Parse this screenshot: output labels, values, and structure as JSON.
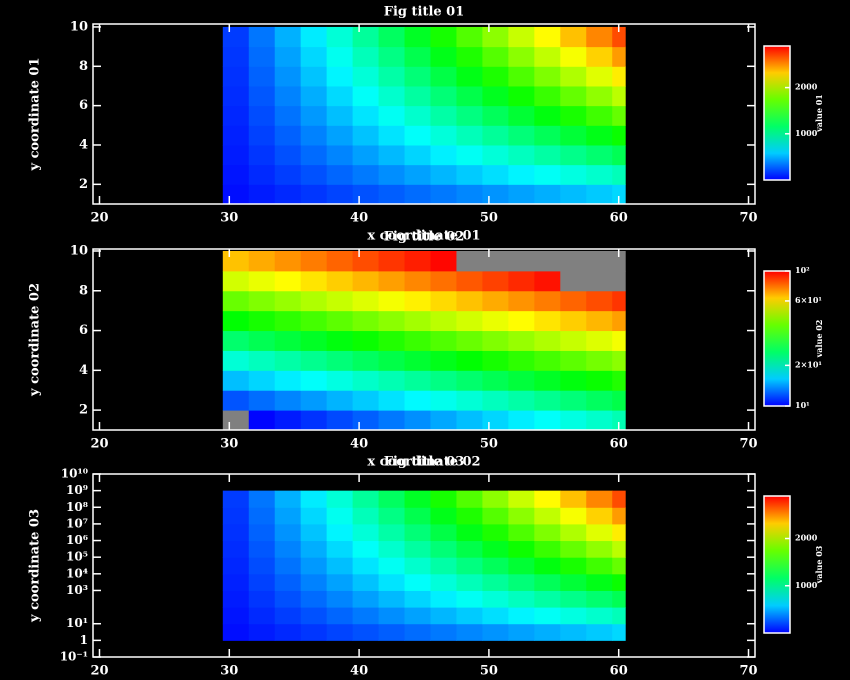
{
  "chart_data": [
    {
      "type": "heatmap",
      "title": "Fig title 01",
      "xlabel": "x coordinate 01",
      "ylabel": "y coordinate 01",
      "colorbar_label": "value 01",
      "xlim": [
        19.5,
        70.5
      ],
      "xticks": [
        20,
        30,
        40,
        50,
        60,
        70
      ],
      "ylim": [
        1,
        10.15
      ],
      "yticks": [
        2,
        4,
        6,
        8,
        10
      ],
      "x_edges": [
        29.5,
        31.5,
        33.5,
        35.5,
        37.5,
        39.5,
        41.5,
        43.5,
        45.5,
        47.5,
        49.5,
        51.5,
        53.5,
        55.5,
        57.5,
        59.5,
        60.5
      ],
      "y_edges": [
        1,
        2,
        3,
        4,
        5,
        6,
        7,
        8,
        9,
        10
      ],
      "zlim": [
        0,
        2900
      ],
      "cticks": [
        1000,
        2000
      ],
      "color_log": false,
      "y_log": false,
      "values": [
        [
          38,
          77,
          115,
          153,
          192,
          230,
          268,
          307,
          345,
          383,
          421,
          460,
          498,
          536,
          575,
          613
        ],
        [
          58,
          116,
          173,
          231,
          289,
          347,
          404,
          462,
          520,
          578,
          635,
          693,
          751,
          809,
          866,
          924
        ],
        [
          76,
          151,
          227,
          303,
          378,
          454,
          529,
          605,
          681,
          756,
          832,
          908,
          983,
          1059,
          1134,
          1210
        ],
        [
          92,
          185,
          277,
          370,
          462,
          554,
          647,
          739,
          831,
          924,
          1016,
          1109,
          1201,
          1293,
          1386,
          1478
        ],
        [
          109,
          217,
          326,
          434,
          543,
          651,
          760,
          868,
          977,
          1085,
          1194,
          1302,
          1411,
          1519,
          1628,
          1736
        ],
        [
          124,
          248,
          372,
          496,
          619,
          743,
          867,
          991,
          1115,
          1239,
          1363,
          1487,
          1610,
          1734,
          1858,
          1982
        ],
        [
          139,
          278,
          417,
          557,
          696,
          835,
          974,
          1113,
          1252,
          1391,
          1530,
          1670,
          1809,
          1948,
          2087,
          2226
        ],
        [
          154,
          307,
          461,
          615,
          768,
          922,
          1075,
          1229,
          1383,
          1536,
          1690,
          1844,
          1997,
          2151,
          2304,
          2458
        ],
        [
          168,
          336,
          504,
          672,
          840,
          1008,
          1176,
          1344,
          1512,
          1680,
          1848,
          2016,
          2184,
          2352,
          2520,
          2688
        ]
      ]
    },
    {
      "type": "heatmap",
      "title": "Fig title 02",
      "xlabel": "x coordinate 02",
      "ylabel": "y coordinate 02",
      "colorbar_label": "value 02",
      "xlim": [
        19.5,
        70.5
      ],
      "xticks": [
        20,
        30,
        40,
        50,
        60,
        70
      ],
      "ylim": [
        1,
        10.1
      ],
      "yticks": [
        2,
        4,
        6,
        8,
        10
      ],
      "x_edges": [
        29.5,
        31.5,
        33.5,
        35.5,
        37.5,
        39.5,
        41.5,
        43.5,
        45.5,
        47.5,
        49.5,
        51.5,
        53.5,
        55.5,
        57.5,
        59.5,
        60.5
      ],
      "y_edges": [
        1,
        2,
        3,
        4,
        5,
        6,
        7,
        8,
        9,
        10
      ],
      "zlim": [
        10,
        100
      ],
      "cticks": [
        {
          "value": 10,
          "label": "10¹"
        },
        {
          "value": 20,
          "label": "2×10¹"
        },
        {
          "value": 60,
          "label": "6×10¹"
        },
        {
          "value": 100,
          "label": "10²"
        }
      ],
      "color_log": true,
      "y_log": false,
      "out_of_range_color": "#808080",
      "values": [
        [
          9.5,
          10.1,
          10.6,
          11.2,
          11.8,
          12.4,
          13.1,
          13.8,
          14.6,
          15.4,
          16.2,
          17.1,
          18.0,
          19.0,
          20.0,
          21.1
        ],
        [
          12.1,
          12.8,
          13.5,
          14.2,
          15.0,
          15.8,
          16.7,
          17.6,
          18.5,
          19.5,
          20.6,
          21.7,
          22.9,
          24.1,
          25.5,
          26.8
        ],
        [
          15.4,
          16.2,
          17.1,
          18.0,
          19.0,
          20.1,
          21.1,
          22.3,
          23.5,
          24.8,
          26.2,
          27.6,
          29.1,
          30.7,
          32.3,
          34.1
        ],
        [
          19.5,
          20.6,
          21.7,
          22.9,
          24.1,
          25.5,
          26.9,
          28.3,
          29.9,
          31.5,
          33.2,
          35.0,
          36.9,
          38.9,
          41.1,
          43.3
        ],
        [
          24.8,
          26.2,
          27.6,
          29.1,
          30.7,
          32.3,
          34.1,
          36.0,
          37.9,
          40.0,
          42.2,
          44.5,
          46.9,
          49.5,
          52.1,
          55.0
        ],
        [
          31.5,
          33.2,
          35.0,
          36.9,
          38.9,
          41.1,
          43.3,
          45.7,
          48.2,
          50.8,
          53.6,
          56.5,
          59.6,
          62.8,
          66.2,
          69.8
        ],
        [
          40.0,
          42.2,
          44.5,
          46.9,
          49.5,
          52.2,
          55.0,
          58.0,
          61.2,
          64.5,
          68.0,
          71.7,
          75.6,
          79.8,
          84.1,
          88.7
        ],
        [
          50.8,
          53.6,
          56.5,
          59.6,
          62.8,
          66.2,
          69.9,
          73.7,
          77.7,
          81.9,
          86.4,
          91.1,
          96.1,
          101.3,
          106.8,
          112.6
        ],
        [
          64.5,
          68.0,
          71.7,
          75.6,
          79.8,
          84.1,
          88.7,
          93.5,
          98.6,
          104.0,
          109.7,
          115.6,
          122.0,
          128.7,
          135.6,
          143.0
        ]
      ]
    },
    {
      "type": "heatmap",
      "title": "Fig title 03",
      "ylabel": "y coordinate 03",
      "colorbar_label": "value 03",
      "xlim": [
        19.5,
        70.5
      ],
      "xticks": [
        20,
        30,
        40,
        50,
        60,
        70
      ],
      "ylim": [
        0.1,
        10000000000
      ],
      "y_log": true,
      "yticks": [
        {
          "value": 0.1,
          "label": "10⁻¹"
        },
        1,
        {
          "value": 10,
          "label": "10¹"
        },
        {
          "value": 1000,
          "label": "10³"
        },
        {
          "value": 10000,
          "label": "10⁴"
        },
        {
          "value": 100000,
          "label": "10⁵"
        },
        {
          "value": 1000000,
          "label": "10⁶"
        },
        {
          "value": 10000000,
          "label": "10⁷"
        },
        {
          "value": 100000000,
          "label": "10⁸"
        },
        {
          "value": 1000000000,
          "label": "10⁹"
        },
        {
          "value": 10000000000,
          "label": "10¹⁰"
        }
      ],
      "x_edges": [
        29.5,
        31.5,
        33.5,
        35.5,
        37.5,
        39.5,
        41.5,
        43.5,
        45.5,
        47.5,
        49.5,
        51.5,
        53.5,
        55.5,
        57.5,
        59.5,
        60.5
      ],
      "y_edges": [
        1,
        10,
        100,
        1000,
        10000,
        100000,
        1000000,
        10000000,
        100000000,
        1000000000
      ],
      "zlim": [
        0,
        2900
      ],
      "cticks": [
        1000,
        2000
      ],
      "color_log": false,
      "values": [
        [
          38,
          77,
          115,
          153,
          192,
          230,
          268,
          307,
          345,
          383,
          421,
          460,
          498,
          536,
          575,
          613
        ],
        [
          58,
          116,
          173,
          231,
          289,
          347,
          404,
          462,
          520,
          578,
          635,
          693,
          751,
          809,
          866,
          924
        ],
        [
          76,
          151,
          227,
          303,
          378,
          454,
          529,
          605,
          681,
          756,
          832,
          908,
          983,
          1059,
          1134,
          1210
        ],
        [
          92,
          185,
          277,
          370,
          462,
          554,
          647,
          739,
          831,
          924,
          1016,
          1109,
          1201,
          1293,
          1386,
          1478
        ],
        [
          109,
          217,
          326,
          434,
          543,
          651,
          760,
          868,
          977,
          1085,
          1194,
          1302,
          1411,
          1519,
          1628,
          1736
        ],
        [
          124,
          248,
          372,
          496,
          619,
          743,
          867,
          991,
          1115,
          1239,
          1363,
          1487,
          1610,
          1734,
          1858,
          1982
        ],
        [
          139,
          278,
          417,
          557,
          696,
          835,
          974,
          1113,
          1252,
          1391,
          1530,
          1670,
          1809,
          1948,
          2087,
          2226
        ],
        [
          154,
          307,
          461,
          615,
          768,
          922,
          1075,
          1229,
          1383,
          1536,
          1690,
          1844,
          1997,
          2151,
          2304,
          2458
        ],
        [
          168,
          336,
          504,
          672,
          840,
          1008,
          1176,
          1344,
          1512,
          1680,
          1848,
          2016,
          2184,
          2352,
          2520,
          2688
        ]
      ]
    }
  ]
}
